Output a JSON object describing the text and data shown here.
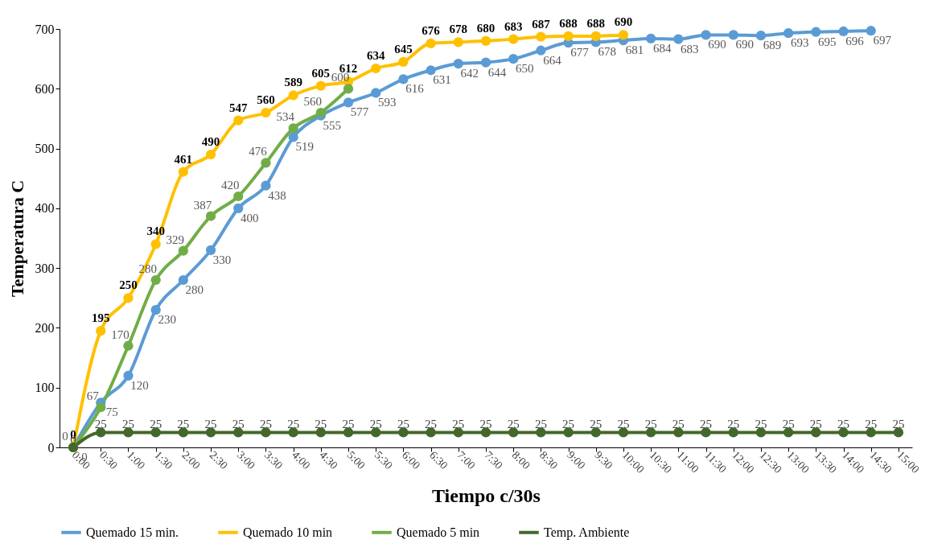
{
  "chart_data": {
    "type": "line",
    "xlabel": "Tiempo c/30s",
    "ylabel": "Temperatura C",
    "categories": [
      "0:00",
      "0:30",
      "1:00",
      "1:30",
      "2:00",
      "2:30",
      "3:00",
      "3:30",
      "4:00",
      "4:30",
      "5:00",
      "5:30",
      "6:00",
      "6:30",
      "7:00",
      "7:30",
      "8:00",
      "8:30",
      "9:00",
      "9:30",
      "10:00",
      "10:30",
      "11:00",
      "11:30",
      "12:00",
      "12:30",
      "13:00",
      "13:30",
      "14:00",
      "14:30",
      "15:00"
    ],
    "series": [
      {
        "name": "Quemado 15 min.",
        "color": "#5b9bd5",
        "values": [
          0,
          75,
          120,
          230,
          280,
          330,
          400,
          438,
          519,
          555,
          577,
          593,
          616,
          631,
          642,
          644,
          650,
          664,
          677,
          678,
          681,
          684,
          683,
          690,
          690,
          689,
          693,
          695,
          696,
          697,
          null
        ]
      },
      {
        "name": "Quemado 10 min",
        "color": "#ffc000",
        "values": [
          0,
          195,
          250,
          340,
          461,
          490,
          547,
          560,
          589,
          605,
          612,
          634,
          645,
          676,
          678,
          680,
          683,
          687,
          688,
          688,
          690,
          null,
          null,
          null,
          null,
          null,
          null,
          null,
          null,
          null,
          null
        ]
      },
      {
        "name": "Quemado 5 min",
        "color": "#70ad47",
        "values": [
          0,
          67,
          170,
          280,
          329,
          387,
          420,
          476,
          534,
          560,
          600,
          null,
          null,
          null,
          null,
          null,
          null,
          null,
          null,
          null,
          null,
          null,
          null,
          null,
          null,
          null,
          null,
          null,
          null,
          null,
          null
        ]
      },
      {
        "name": "Temp. Ambiente",
        "color": "#43682b",
        "values": [
          0,
          25,
          25,
          25,
          25,
          25,
          25,
          25,
          25,
          25,
          25,
          25,
          25,
          25,
          25,
          25,
          25,
          25,
          25,
          25,
          25,
          25,
          25,
          25,
          25,
          25,
          25,
          25,
          25,
          25,
          25
        ]
      }
    ],
    "ylim": [
      0,
      700
    ],
    "yticks": [
      0,
      100,
      200,
      300,
      400,
      500,
      600,
      700
    ],
    "grid": false,
    "legend": "bottom",
    "marker": "circle",
    "line_style": "solid",
    "data_labels": true
  }
}
